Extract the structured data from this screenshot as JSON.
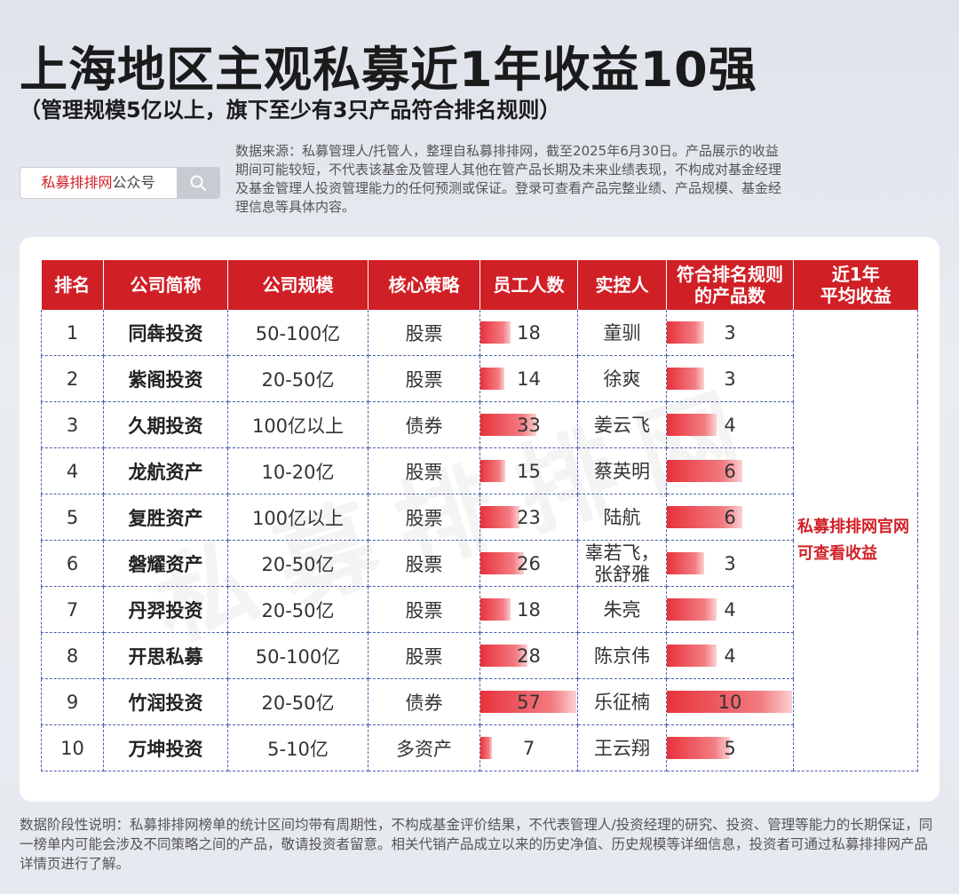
{
  "header": {
    "title": "上海地区主观私募近1年收益10强",
    "subtitle": "（管理规模5亿以上，旗下至少有3只产品符合排名规则）"
  },
  "search": {
    "brand": "私募排排网",
    "suffix": "公众号"
  },
  "source_note": "数据来源：私募管理人/托管人，整理自私募排排网，截至2025年6月30日。产品展示的收益期间可能较短，不代表该基金及管理人其他在管产品长期及未来业绩表现，不构成对基金经理及基金管理人投资管理能力的任何预测或保证。登录可查看产品完整业绩、产品规模、基金经理信息等具体内容。",
  "watermark": "私募排排网",
  "table": {
    "headers": [
      "排名",
      "公司简称",
      "公司规模",
      "核心策略",
      "员工人数",
      "实控人",
      "符合排名规则的产品数",
      "近1年平均收益"
    ],
    "header_lines": {
      "products": [
        "符合排名规则",
        "的产品数"
      ],
      "return": [
        "近1年",
        "平均收益"
      ]
    },
    "rows": [
      {
        "rank": "1",
        "company": "同犇投资",
        "scale": "50-100亿",
        "strategy": "股票",
        "staff": 18,
        "controller": "童驯",
        "products": 3
      },
      {
        "rank": "2",
        "company": "紫阁投资",
        "scale": "20-50亿",
        "strategy": "股票",
        "staff": 14,
        "controller": "徐爽",
        "products": 3
      },
      {
        "rank": "3",
        "company": "久期投资",
        "scale": "100亿以上",
        "strategy": "债券",
        "staff": 33,
        "controller": "姜云飞",
        "products": 4
      },
      {
        "rank": "4",
        "company": "龙航资产",
        "scale": "10-20亿",
        "strategy": "股票",
        "staff": 15,
        "controller": "蔡英明",
        "products": 6
      },
      {
        "rank": "5",
        "company": "复胜资产",
        "scale": "100亿以上",
        "strategy": "股票",
        "staff": 23,
        "controller": "陆航",
        "products": 6
      },
      {
        "rank": "6",
        "company": "磐耀资产",
        "scale": "20-50亿",
        "strategy": "股票",
        "staff": 26,
        "controller": "辜若飞，张舒雅",
        "products": 3
      },
      {
        "rank": "7",
        "company": "丹羿投资",
        "scale": "20-50亿",
        "strategy": "股票",
        "staff": 18,
        "controller": "朱亮",
        "products": 4
      },
      {
        "rank": "8",
        "company": "开思私募",
        "scale": "50-100亿",
        "strategy": "股票",
        "staff": 28,
        "controller": "陈京伟",
        "products": 4
      },
      {
        "rank": "9",
        "company": "竹润投资",
        "scale": "20-50亿",
        "strategy": "债券",
        "staff": 57,
        "controller": "乐征楠",
        "products": 10
      },
      {
        "rank": "10",
        "company": "万坤投资",
        "scale": "5-10亿",
        "strategy": "多资产",
        "staff": 7,
        "controller": "王云翔",
        "products": 5
      }
    ],
    "return_note": [
      "私募排排网官网",
      "可查看收益"
    ]
  },
  "footer_note": "数据阶段性说明：私募排排网榜单的统计区间均带有周期性，不构成基金评价结果，不代表管理人/投资经理的研究、投资、管理等能力的长期保证，同一榜单内可能会涉及不同策略之间的产品，敬请投资者留意。相关代销产品成立以来的历史净值、历史规模等详细信息，投资者可通过私募排排网产品详情页进行了解。",
  "colors": {
    "accent": "#d11f26",
    "bar": "#e8323a",
    "grid": "#4a5fb0"
  }
}
